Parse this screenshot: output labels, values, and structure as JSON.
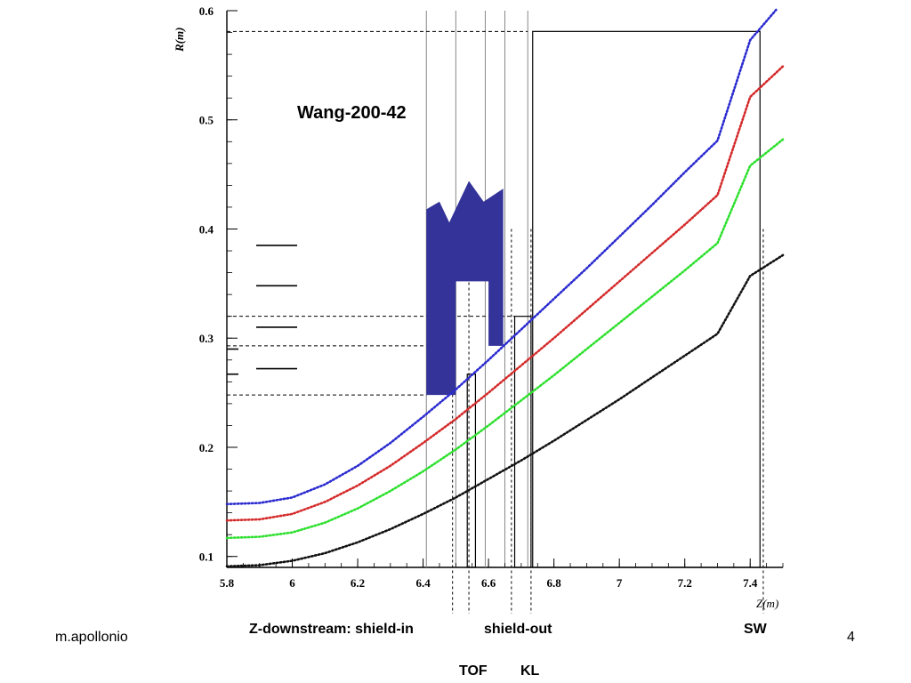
{
  "slide": {
    "author": "m.apollonio",
    "page_number": "4",
    "labels": {
      "z_downstream": "Z-downstream: shield-in",
      "shield_out": "shield-out",
      "sw": "SW",
      "tof": "TOF",
      "kl": "KL"
    }
  },
  "colors": {
    "blue_series": "#2b2bd0",
    "red_series": "#d42a2a",
    "green_series": "#2ee02e",
    "black_series": "#111111",
    "shield": "#333399"
  },
  "chart_data": {
    "type": "line",
    "title": "Wang-200-42",
    "xlabel": "Z(m)",
    "ylabel": "R(m)",
    "xlim": [
      5.8,
      7.5
    ],
    "ylim": [
      0.09,
      0.6
    ],
    "xticks": [
      "5.8",
      "6",
      "6.2",
      "6.4",
      "6.6",
      "6.8",
      "7",
      "7.2",
      "7.4"
    ],
    "yticks": [
      "0.1",
      "0.2",
      "0.3",
      "0.4",
      "0.5",
      "0.6"
    ],
    "grid": false,
    "series": [
      {
        "color": "blue",
        "x": [
          5.8,
          5.9,
          6.0,
          6.1,
          6.2,
          6.3,
          6.4,
          6.5,
          6.6,
          6.7,
          6.8,
          6.9,
          7.0,
          7.1,
          7.2,
          7.3,
          7.4,
          7.48
        ],
        "values": [
          0.148,
          0.149,
          0.154,
          0.166,
          0.183,
          0.204,
          0.228,
          0.253,
          0.28,
          0.308,
          0.336,
          0.364,
          0.393,
          0.422,
          0.452,
          0.481,
          0.573,
          0.601
        ]
      },
      {
        "color": "red",
        "x": [
          5.8,
          5.9,
          6.0,
          6.1,
          6.2,
          6.3,
          6.4,
          6.5,
          6.6,
          6.7,
          6.8,
          6.9,
          7.0,
          7.1,
          7.2,
          7.3,
          7.4,
          7.5
        ],
        "values": [
          0.133,
          0.134,
          0.139,
          0.15,
          0.165,
          0.183,
          0.204,
          0.226,
          0.25,
          0.275,
          0.3,
          0.326,
          0.352,
          0.378,
          0.404,
          0.431,
          0.521,
          0.549
        ]
      },
      {
        "color": "green",
        "x": [
          5.8,
          5.9,
          6.0,
          6.1,
          6.2,
          6.3,
          6.4,
          6.5,
          6.6,
          6.7,
          6.8,
          6.9,
          7.0,
          7.1,
          7.2,
          7.3,
          7.4,
          7.5
        ],
        "values": [
          0.117,
          0.118,
          0.122,
          0.131,
          0.144,
          0.16,
          0.178,
          0.198,
          0.22,
          0.243,
          0.266,
          0.29,
          0.314,
          0.338,
          0.362,
          0.387,
          0.458,
          0.482
        ]
      },
      {
        "color": "black",
        "x": [
          5.8,
          5.9,
          6.0,
          6.1,
          6.2,
          6.3,
          6.4,
          6.5,
          6.6,
          6.7,
          6.8,
          6.9,
          7.0,
          7.1,
          7.2,
          7.3,
          7.4,
          7.5
        ],
        "values": [
          0.091,
          0.092,
          0.096,
          0.103,
          0.113,
          0.125,
          0.139,
          0.154,
          0.171,
          0.188,
          0.206,
          0.225,
          0.244,
          0.264,
          0.284,
          0.304,
          0.357,
          0.376
        ]
      }
    ],
    "vertical_lines_solid": [
      6.41,
      6.5,
      6.59,
      6.65,
      6.72
    ],
    "vertical_lines_dashed": [
      6.49,
      6.54,
      6.67,
      6.73,
      7.44
    ],
    "horizontal_lines_dashed": [
      0.581,
      0.32,
      0.293,
      0.248
    ],
    "rectangles": [
      {
        "x": [
          6.735,
          7.43
        ],
        "y": [
          0.09,
          0.581
        ]
      },
      {
        "x": [
          6.68,
          6.73
        ],
        "y": [
          0.09,
          0.32
        ]
      },
      {
        "x": [
          6.535,
          6.56
        ],
        "y": [
          0.09,
          0.267
        ]
      }
    ],
    "shield_polygon": [
      [
        6.41,
        0.248
      ],
      [
        6.41,
        0.418
      ],
      [
        6.45,
        0.425
      ],
      [
        6.48,
        0.406
      ],
      [
        6.54,
        0.444
      ],
      [
        6.585,
        0.425
      ],
      [
        6.645,
        0.437
      ],
      [
        6.645,
        0.293
      ],
      [
        6.6,
        0.293
      ],
      [
        6.6,
        0.352
      ],
      [
        6.5,
        0.352
      ],
      [
        6.5,
        0.248
      ]
    ],
    "left_ticks": [
      0.385,
      0.348,
      0.31,
      0.272
    ]
  }
}
